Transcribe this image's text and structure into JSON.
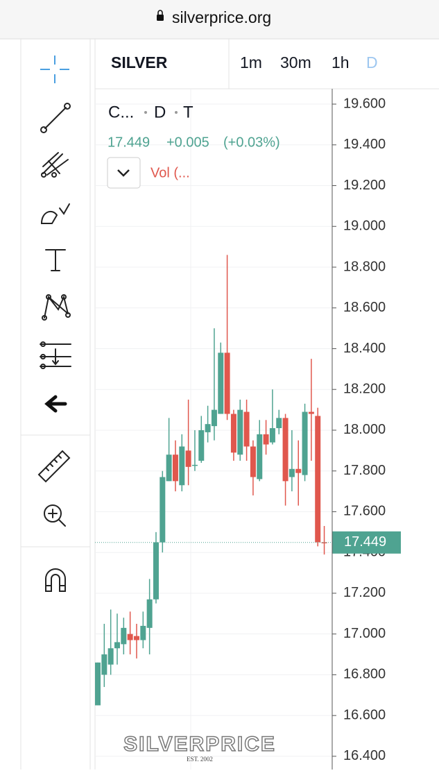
{
  "browser": {
    "url": "silverprice.org"
  },
  "header": {
    "symbol": "SILVER",
    "intervals": [
      "1m",
      "30m",
      "1h",
      "D"
    ]
  },
  "legend": {
    "name": "C...",
    "interval": "D",
    "source": "T",
    "change": "+0.005",
    "change_percent": "(+0.03%)",
    "volume": "Vol (..."
  },
  "watermark": {
    "brand": "SILVERPRICE",
    "since": "EST. 2002"
  },
  "chart_data": {
    "type": "candlestick",
    "up_color": "#4fa391",
    "down_color": "#e0574d",
    "last_price": 17.449,
    "ylim": [
      16.335,
      19.675
    ],
    "yticks": [
      {
        "value": 19.6,
        "label": "19.600"
      },
      {
        "value": 19.4,
        "label": "19.400"
      },
      {
        "value": 19.2,
        "label": "19.200"
      },
      {
        "value": 19.0,
        "label": "19.000"
      },
      {
        "value": 18.8,
        "label": "18.800"
      },
      {
        "value": 18.6,
        "label": "18.600"
      },
      {
        "value": 18.4,
        "label": "18.400"
      },
      {
        "value": 18.2,
        "label": "18.200"
      },
      {
        "value": 18.0,
        "label": "18.000"
      },
      {
        "value": 17.8,
        "label": "17.800"
      },
      {
        "value": 17.6,
        "label": "17.600"
      },
      {
        "value": 17.4,
        "label": "17.400"
      },
      {
        "value": 17.2,
        "label": "17.200"
      },
      {
        "value": 17.0,
        "label": "17.000"
      },
      {
        "value": 16.8,
        "label": "16.800"
      },
      {
        "value": 16.6,
        "label": "16.600"
      },
      {
        "value": 16.4,
        "label": "16.400"
      }
    ],
    "grid": true,
    "open": [
      16.65,
      16.8,
      16.85,
      16.93,
      16.95,
      17.0,
      16.99,
      16.97,
      17.03,
      17.17,
      17.45,
      17.75,
      17.88,
      17.73,
      17.9,
      17.83,
      17.85,
      17.99,
      18.02,
      18.08,
      18.38,
      18.08,
      17.88,
      18.09,
      17.92,
      17.76,
      17.98,
      17.94,
      18.01,
      18.06,
      17.77,
      17.81,
      17.78,
      18.09,
      18.07,
      17.45
    ],
    "high": [
      16.86,
      17.05,
      17.12,
      17.1,
      17.08,
      17.11,
      17.05,
      17.11,
      17.27,
      17.5,
      17.8,
      18.06,
      17.95,
      17.98,
      18.15,
      18.0,
      18.07,
      18.12,
      18.5,
      18.43,
      18.86,
      18.1,
      18.15,
      18.15,
      17.95,
      18.05,
      18.05,
      18.2,
      18.1,
      18.08,
      18.0,
      17.95,
      18.13,
      18.35,
      18.11,
      17.53
    ],
    "low": [
      16.65,
      16.74,
      16.8,
      16.85,
      16.9,
      16.9,
      16.88,
      16.93,
      16.9,
      17.15,
      17.4,
      17.75,
      17.7,
      17.7,
      17.73,
      17.8,
      17.84,
      17.94,
      17.95,
      18.08,
      18.05,
      17.85,
      17.85,
      17.85,
      17.68,
      17.75,
      17.88,
      17.93,
      17.98,
      17.63,
      17.7,
      17.63,
      17.75,
      17.85,
      17.43,
      17.39
    ],
    "close": [
      16.86,
      16.9,
      16.93,
      16.96,
      17.03,
      16.97,
      16.97,
      17.04,
      17.17,
      17.45,
      17.77,
      17.88,
      17.75,
      17.92,
      17.82,
      17.83,
      18.0,
      18.03,
      18.1,
      18.38,
      18.08,
      17.89,
      18.1,
      17.92,
      17.77,
      17.98,
      17.93,
      18.01,
      18.06,
      17.75,
      17.81,
      17.79,
      18.09,
      18.08,
      17.45,
      17.449
    ]
  }
}
